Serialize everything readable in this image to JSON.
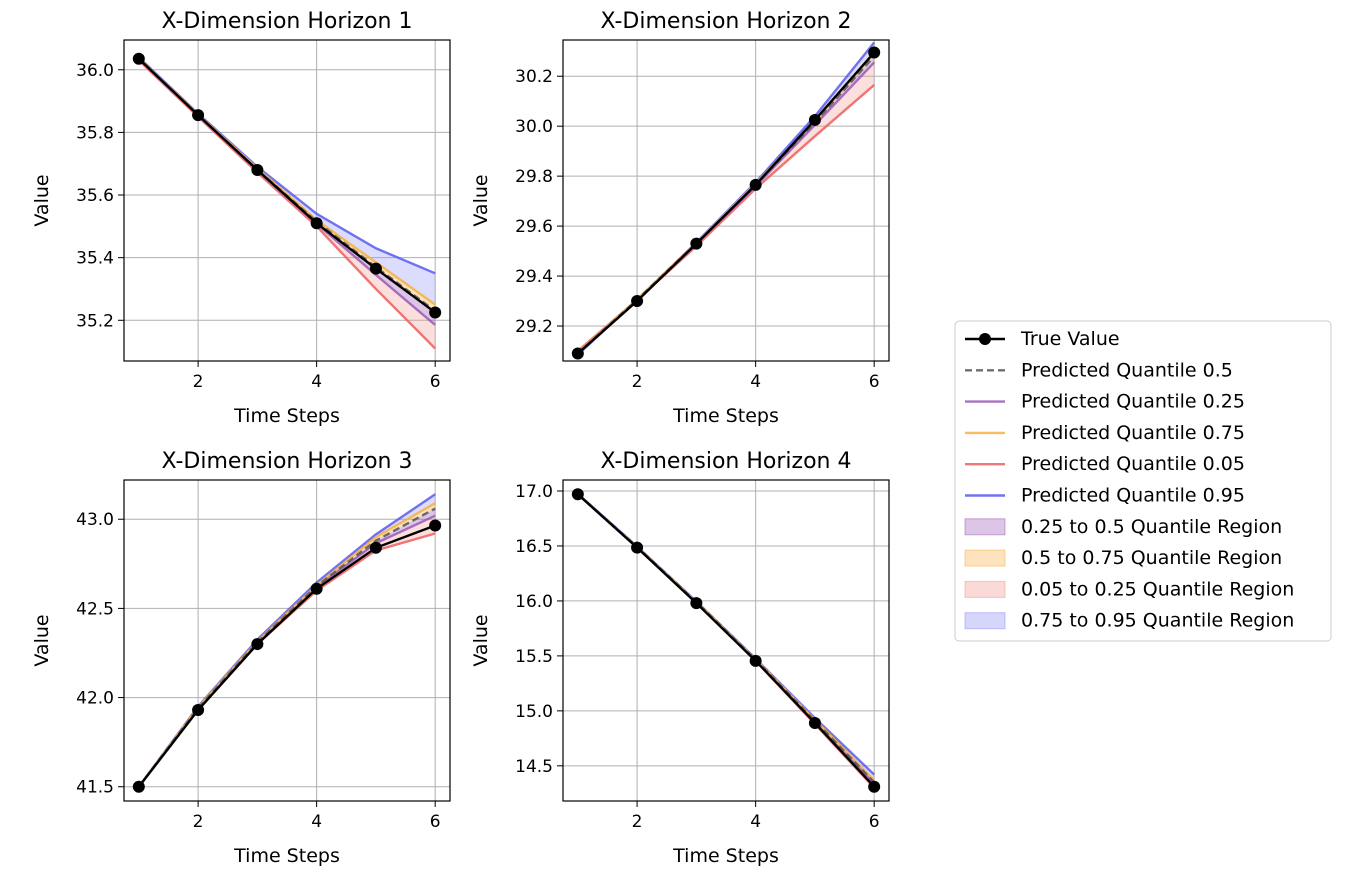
{
  "chart_data": [
    {
      "type": "line",
      "title": "X-Dimension Horizon 1",
      "xlabel": "Time Steps",
      "ylabel": "Value",
      "x": [
        1,
        2,
        3,
        4,
        5,
        6
      ],
      "xlim": [
        0.75,
        6.25
      ],
      "ylim": [
        35.07,
        36.095
      ],
      "xticks": [
        2,
        4,
        6
      ],
      "xtick_labels": [
        "2",
        "4",
        "6"
      ],
      "yticks": [
        35.2,
        35.4,
        35.6,
        35.8,
        36.0
      ],
      "ytick_labels": [
        "35.2",
        "35.4",
        "35.6",
        "35.8",
        "36.0"
      ],
      "grid": true,
      "series": [
        {
          "name": "True Value",
          "values": [
            36.035,
            35.855,
            35.68,
            35.51,
            35.365,
            35.225
          ]
        },
        {
          "name": "Predicted Quantile 0.5",
          "values": [
            36.035,
            35.855,
            35.68,
            35.515,
            35.37,
            35.23
          ]
        },
        {
          "name": "Predicted Quantile 0.25",
          "values": [
            36.035,
            35.855,
            35.678,
            35.508,
            35.345,
            35.185
          ]
        },
        {
          "name": "Predicted Quantile 0.75",
          "values": [
            36.037,
            35.857,
            35.685,
            35.52,
            35.385,
            35.25
          ]
        },
        {
          "name": "Predicted Quantile 0.05",
          "values": [
            36.03,
            35.85,
            35.672,
            35.5,
            35.3,
            35.11
          ]
        },
        {
          "name": "Predicted Quantile 0.95",
          "values": [
            36.04,
            35.86,
            35.69,
            35.54,
            35.43,
            35.35
          ]
        }
      ]
    },
    {
      "type": "line",
      "title": "X-Dimension Horizon 2",
      "xlabel": "Time Steps",
      "ylabel": "Value",
      "x": [
        1,
        2,
        3,
        4,
        5,
        6
      ],
      "xlim": [
        0.75,
        6.25
      ],
      "ylim": [
        29.06,
        30.345
      ],
      "xticks": [
        2,
        4,
        6
      ],
      "xtick_labels": [
        "2",
        "4",
        "6"
      ],
      "yticks": [
        29.2,
        29.4,
        29.6,
        29.8,
        30.0,
        30.2
      ],
      "ytick_labels": [
        "29.2",
        "29.4",
        "29.6",
        "29.8",
        "30.0",
        "30.2"
      ],
      "grid": true,
      "series": [
        {
          "name": "True Value",
          "values": [
            29.09,
            29.3,
            29.53,
            29.765,
            30.025,
            30.295
          ]
        },
        {
          "name": "Predicted Quantile 0.5",
          "values": [
            29.09,
            29.305,
            29.53,
            29.765,
            30.015,
            30.28
          ]
        },
        {
          "name": "Predicted Quantile 0.25",
          "values": [
            29.09,
            29.303,
            29.528,
            29.76,
            30.005,
            30.255
          ]
        },
        {
          "name": "Predicted Quantile 0.75",
          "values": [
            29.092,
            29.307,
            29.533,
            29.77,
            30.02,
            30.29
          ]
        },
        {
          "name": "Predicted Quantile 0.05",
          "values": [
            29.1,
            29.305,
            29.52,
            29.75,
            29.96,
            30.165
          ]
        },
        {
          "name": "Predicted Quantile 0.95",
          "values": [
            29.085,
            29.305,
            29.535,
            29.775,
            30.04,
            30.335
          ]
        }
      ]
    },
    {
      "type": "line",
      "title": "X-Dimension Horizon 3",
      "xlabel": "Time Steps",
      "ylabel": "Value",
      "x": [
        1,
        2,
        3,
        4,
        5,
        6
      ],
      "xlim": [
        0.75,
        6.25
      ],
      "ylim": [
        41.42,
        43.22
      ],
      "xticks": [
        2,
        4,
        6
      ],
      "xtick_labels": [
        "2",
        "4",
        "6"
      ],
      "yticks": [
        41.5,
        42.0,
        42.5,
        43.0
      ],
      "ytick_labels": [
        "41.5",
        "42.0",
        "42.5",
        "43.0"
      ],
      "grid": true,
      "series": [
        {
          "name": "True Value",
          "values": [
            41.5,
            41.93,
            42.3,
            42.61,
            42.84,
            42.965
          ]
        },
        {
          "name": "Predicted Quantile 0.5",
          "values": [
            41.5,
            41.94,
            42.31,
            42.625,
            42.88,
            43.06
          ]
        },
        {
          "name": "Predicted Quantile 0.25",
          "values": [
            41.5,
            41.94,
            42.305,
            42.62,
            42.865,
            43.02
          ]
        },
        {
          "name": "Predicted Quantile 0.75",
          "values": [
            41.5,
            41.945,
            42.315,
            42.63,
            42.9,
            43.09
          ]
        },
        {
          "name": "Predicted Quantile 0.05",
          "values": [
            41.5,
            41.935,
            42.3,
            42.6,
            42.825,
            42.92
          ]
        },
        {
          "name": "Predicted Quantile 0.95",
          "values": [
            41.5,
            41.95,
            42.325,
            42.645,
            42.915,
            43.14
          ]
        }
      ]
    },
    {
      "type": "line",
      "title": "X-Dimension Horizon 4",
      "xlabel": "Time Steps",
      "ylabel": "Value",
      "x": [
        1,
        2,
        3,
        4,
        5,
        6
      ],
      "xlim": [
        0.75,
        6.25
      ],
      "ylim": [
        14.18,
        17.1
      ],
      "xticks": [
        2,
        4,
        6
      ],
      "xtick_labels": [
        "2",
        "4",
        "6"
      ],
      "yticks": [
        14.5,
        15.0,
        15.5,
        16.0,
        16.5,
        17.0
      ],
      "ytick_labels": [
        "14.5",
        "15.0",
        "15.5",
        "16.0",
        "16.5",
        "17.0"
      ],
      "grid": true,
      "series": [
        {
          "name": "True Value",
          "values": [
            16.97,
            16.485,
            15.98,
            15.455,
            14.89,
            14.31
          ]
        },
        {
          "name": "Predicted Quantile 0.5",
          "values": [
            16.97,
            16.49,
            15.99,
            15.465,
            14.91,
            14.35
          ]
        },
        {
          "name": "Predicted Quantile 0.25",
          "values": [
            16.97,
            16.49,
            15.985,
            15.46,
            14.9,
            14.34
          ]
        },
        {
          "name": "Predicted Quantile 0.75",
          "values": [
            16.97,
            16.49,
            15.99,
            15.47,
            14.92,
            14.37
          ]
        },
        {
          "name": "Predicted Quantile 0.05",
          "values": [
            16.97,
            16.485,
            15.985,
            15.455,
            14.88,
            14.3
          ]
        },
        {
          "name": "Predicted Quantile 0.95",
          "values": [
            16.975,
            16.495,
            15.995,
            15.475,
            14.935,
            14.42
          ]
        }
      ]
    }
  ],
  "legend": {
    "placement": "right",
    "entries": [
      {
        "label": "True Value",
        "kind": "line-marker",
        "color": "#000000"
      },
      {
        "label": "Predicted Quantile 0.5",
        "kind": "dashed",
        "color": "#555555"
      },
      {
        "label": "Predicted Quantile 0.25",
        "kind": "line",
        "color": "#9b59b6"
      },
      {
        "label": "Predicted Quantile 0.75",
        "kind": "line",
        "color": "#f5b041"
      },
      {
        "label": "Predicted Quantile 0.05",
        "kind": "line",
        "color": "#ec5f5f"
      },
      {
        "label": "Predicted Quantile 0.95",
        "kind": "line",
        "color": "#5b5bf0"
      },
      {
        "label": "0.25 to 0.5 Quantile Region",
        "kind": "patch",
        "color": "#9b59b6"
      },
      {
        "label": "0.5 to 0.75 Quantile Region",
        "kind": "patch",
        "color": "#f5b041"
      },
      {
        "label": "0.05 to 0.25 Quantile Region",
        "kind": "patch",
        "color": "#f1948a"
      },
      {
        "label": "0.75 to 0.95 Quantile Region",
        "kind": "patch",
        "color": "#8a8af5"
      }
    ]
  }
}
